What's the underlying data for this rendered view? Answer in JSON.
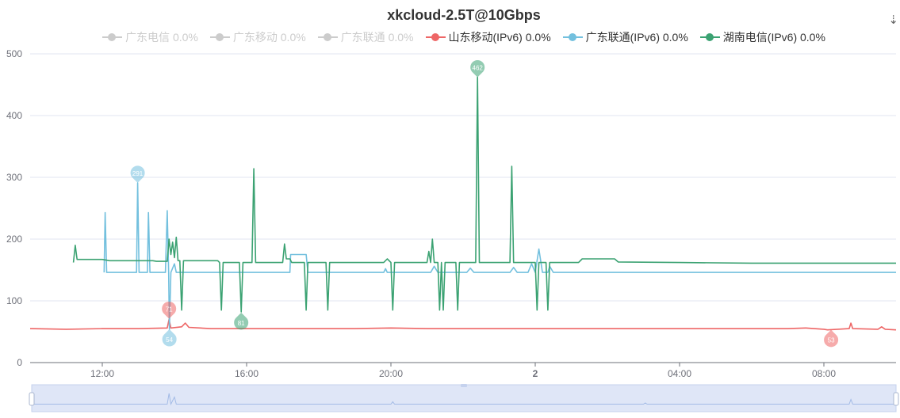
{
  "chart_data": {
    "type": "line",
    "title": "xkcloud-2.5T@10Gbps",
    "xlabel": "",
    "ylabel": "",
    "ylim": [
      0,
      500
    ],
    "yticks": [
      0,
      100,
      200,
      300,
      400,
      500
    ],
    "grid": true,
    "legend_position": "top-center",
    "x_tick_labels": [
      "12:00",
      "16:00",
      "20:00",
      "2",
      "04:00",
      "08:00"
    ],
    "x_tick_hours": [
      12,
      16,
      20,
      24,
      28,
      32
    ],
    "x_range_hours": [
      10,
      34
    ],
    "x_unit": "hours from 00:00 on day 1",
    "legend": [
      {
        "name": "广东电信",
        "text": "广东电信 0.0%",
        "color": "#cccccc",
        "active": false
      },
      {
        "name": "广东移动",
        "text": "广东移动 0.0%",
        "color": "#cccccc",
        "active": false
      },
      {
        "name": "广东联通",
        "text": "广东联通 0.0%",
        "color": "#cccccc",
        "active": false
      },
      {
        "name": "山东移动(IPv6)",
        "text": "山东移动(IPv6) 0.0%",
        "color": "#ee6666",
        "active": true
      },
      {
        "name": "广东联通(IPv6)",
        "text": "广东联通(IPv6) 0.0%",
        "color": "#73c0de",
        "active": true
      },
      {
        "name": "湖南电信(IPv6)",
        "text": "湖南电信(IPv6) 0.0%",
        "color": "#3ba272",
        "active": true
      }
    ],
    "series": [
      {
        "name": "山东移动(IPv6)",
        "color": "#ee6666",
        "points": [
          [
            10.0,
            55
          ],
          [
            11.0,
            54
          ],
          [
            12.0,
            55
          ],
          [
            13.0,
            55
          ],
          [
            13.8,
            56
          ],
          [
            13.85,
            70
          ],
          [
            13.9,
            56
          ],
          [
            14.2,
            58
          ],
          [
            14.3,
            64
          ],
          [
            14.4,
            57
          ],
          [
            15.0,
            55
          ],
          [
            16.0,
            55
          ],
          [
            17.0,
            55
          ],
          [
            18.0,
            55
          ],
          [
            19.0,
            55
          ],
          [
            20.0,
            56
          ],
          [
            21.0,
            55
          ],
          [
            22.0,
            55
          ],
          [
            23.0,
            55
          ],
          [
            24.0,
            55
          ],
          [
            25.0,
            55
          ],
          [
            26.0,
            55
          ],
          [
            27.0,
            55
          ],
          [
            28.0,
            55
          ],
          [
            29.0,
            55
          ],
          [
            30.0,
            55
          ],
          [
            31.0,
            55
          ],
          [
            31.5,
            56
          ],
          [
            32.0,
            54
          ],
          [
            32.1,
            53
          ],
          [
            32.7,
            55
          ],
          [
            32.75,
            64
          ],
          [
            32.8,
            55
          ],
          [
            33.5,
            54
          ],
          [
            33.6,
            58
          ],
          [
            33.7,
            54
          ],
          [
            34.0,
            53
          ]
        ],
        "markers": [
          {
            "type": "max",
            "label": "71",
            "x": 13.85,
            "y": 71
          },
          {
            "type": "min",
            "label": "53",
            "x": 32.2,
            "y": 53
          }
        ]
      },
      {
        "name": "广东联通(IPv6)",
        "color": "#73c0de",
        "points": [
          [
            12.05,
            146
          ],
          [
            12.08,
            243
          ],
          [
            12.12,
            146
          ],
          [
            12.95,
            146
          ],
          [
            12.98,
            291
          ],
          [
            13.02,
            146
          ],
          [
            13.25,
            146
          ],
          [
            13.28,
            243
          ],
          [
            13.32,
            146
          ],
          [
            13.75,
            146
          ],
          [
            13.8,
            246
          ],
          [
            13.84,
            146
          ],
          [
            13.86,
            54
          ],
          [
            13.9,
            146
          ],
          [
            14.0,
            160
          ],
          [
            14.05,
            146
          ],
          [
            17.2,
            146
          ],
          [
            17.22,
            175
          ],
          [
            17.65,
            175
          ],
          [
            17.7,
            146
          ],
          [
            19.8,
            146
          ],
          [
            19.85,
            152
          ],
          [
            19.9,
            146
          ],
          [
            21.1,
            146
          ],
          [
            21.2,
            156
          ],
          [
            21.3,
            146
          ],
          [
            22.1,
            146
          ],
          [
            22.2,
            153
          ],
          [
            22.3,
            146
          ],
          [
            23.3,
            146
          ],
          [
            23.4,
            154
          ],
          [
            23.5,
            146
          ],
          [
            23.8,
            146
          ],
          [
            23.9,
            160
          ],
          [
            24.0,
            146
          ],
          [
            24.1,
            184
          ],
          [
            24.2,
            146
          ],
          [
            24.35,
            146
          ],
          [
            24.4,
            156
          ],
          [
            24.5,
            146
          ],
          [
            25.0,
            146
          ],
          [
            28.0,
            146
          ],
          [
            32.0,
            146
          ],
          [
            34.0,
            146
          ]
        ],
        "markers": [
          {
            "type": "max",
            "label": "291",
            "x": 12.98,
            "y": 291
          },
          {
            "type": "min",
            "label": "54",
            "x": 13.86,
            "y": 54
          }
        ]
      },
      {
        "name": "湖南电信(IPv6)",
        "color": "#3ba272",
        "points": [
          [
            11.2,
            162
          ],
          [
            11.25,
            190
          ],
          [
            11.3,
            167
          ],
          [
            12.0,
            167
          ],
          [
            12.2,
            165
          ],
          [
            13.0,
            165
          ],
          [
            13.4,
            165
          ],
          [
            13.5,
            164
          ],
          [
            13.8,
            164
          ],
          [
            13.85,
            200
          ],
          [
            13.9,
            175
          ],
          [
            13.95,
            195
          ],
          [
            14.0,
            170
          ],
          [
            14.05,
            203
          ],
          [
            14.1,
            165
          ],
          [
            14.15,
            165
          ],
          [
            14.2,
            85
          ],
          [
            14.25,
            165
          ],
          [
            15.2,
            165
          ],
          [
            15.25,
            162
          ],
          [
            15.3,
            85
          ],
          [
            15.35,
            162
          ],
          [
            15.8,
            162
          ],
          [
            15.85,
            82
          ],
          [
            15.9,
            162
          ],
          [
            16.15,
            162
          ],
          [
            16.2,
            314
          ],
          [
            16.25,
            162
          ],
          [
            17.0,
            162
          ],
          [
            17.05,
            192
          ],
          [
            17.1,
            168
          ],
          [
            17.2,
            168
          ],
          [
            17.25,
            162
          ],
          [
            17.6,
            162
          ],
          [
            17.65,
            85
          ],
          [
            17.7,
            162
          ],
          [
            18.2,
            162
          ],
          [
            18.25,
            85
          ],
          [
            18.3,
            162
          ],
          [
            19.8,
            162
          ],
          [
            19.9,
            168
          ],
          [
            20.0,
            162
          ],
          [
            20.05,
            85
          ],
          [
            20.1,
            162
          ],
          [
            21.0,
            162
          ],
          [
            21.05,
            180
          ],
          [
            21.1,
            162
          ],
          [
            21.15,
            200
          ],
          [
            21.2,
            162
          ],
          [
            21.3,
            162
          ],
          [
            21.35,
            85
          ],
          [
            21.4,
            162
          ],
          [
            21.45,
            85
          ],
          [
            21.5,
            162
          ],
          [
            21.8,
            162
          ],
          [
            21.85,
            85
          ],
          [
            21.9,
            162
          ],
          [
            22.35,
            162
          ],
          [
            22.4,
            462
          ],
          [
            22.45,
            162
          ],
          [
            23.3,
            162
          ],
          [
            23.35,
            318
          ],
          [
            23.4,
            162
          ],
          [
            24.0,
            162
          ],
          [
            24.05,
            85
          ],
          [
            24.1,
            162
          ],
          [
            24.3,
            162
          ],
          [
            24.35,
            85
          ],
          [
            24.4,
            162
          ],
          [
            25.0,
            162
          ],
          [
            25.2,
            162
          ],
          [
            25.3,
            168
          ],
          [
            26.2,
            168
          ],
          [
            26.3,
            163
          ],
          [
            28.0,
            162
          ],
          [
            30.0,
            161
          ],
          [
            32.0,
            161
          ],
          [
            34.0,
            161
          ]
        ],
        "markers": [
          {
            "type": "max",
            "label": "462",
            "x": 22.4,
            "y": 462
          },
          {
            "type": "min",
            "label": "81",
            "x": 15.85,
            "y": 81
          }
        ]
      }
    ],
    "overview_line": {
      "color": "#a3bbe6",
      "points": [
        [
          10.0,
          10
        ],
        [
          13.8,
          10
        ],
        [
          13.85,
          28
        ],
        [
          13.9,
          10
        ],
        [
          14.0,
          22
        ],
        [
          14.05,
          10
        ],
        [
          20.0,
          10
        ],
        [
          20.05,
          14
        ],
        [
          20.1,
          10
        ],
        [
          27.0,
          10
        ],
        [
          27.05,
          12
        ],
        [
          27.1,
          10
        ],
        [
          32.7,
          10
        ],
        [
          32.75,
          18
        ],
        [
          32.8,
          10
        ],
        [
          34.0,
          10
        ]
      ]
    }
  }
}
